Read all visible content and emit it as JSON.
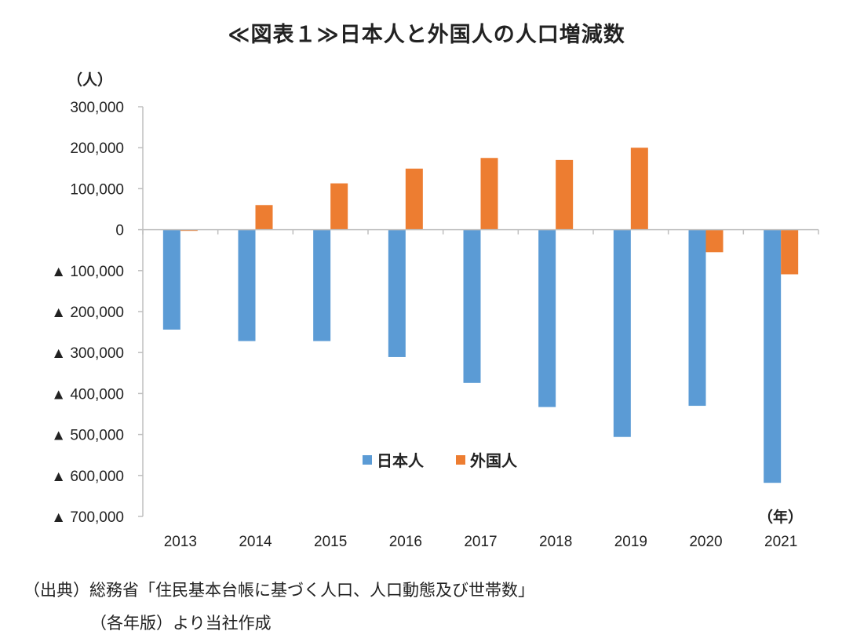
{
  "title": "≪図表１≫日本人と外国人の人口増減数",
  "chart_data": {
    "type": "bar",
    "y_unit_label": "（人）",
    "x_unit_label": "（年）",
    "categories": [
      "2013",
      "2014",
      "2015",
      "2016",
      "2017",
      "2018",
      "2019",
      "2020",
      "2021"
    ],
    "series": [
      {
        "name": "日本人",
        "color": "#5B9BD5",
        "values": [
          -244000,
          -272000,
          -272000,
          -311000,
          -374000,
          -433000,
          -506000,
          -430000,
          -618000
        ]
      },
      {
        "name": "外国人",
        "color": "#ED7D31",
        "values": [
          -3000,
          60000,
          113000,
          149000,
          175000,
          170000,
          200000,
          -55000,
          -109000
        ]
      }
    ],
    "ylim": [
      -700000,
      300000
    ],
    "yticks": [
      300000,
      200000,
      100000,
      0,
      -100000,
      -200000,
      -300000,
      -400000,
      -500000,
      -600000,
      -700000
    ],
    "ytick_labels": [
      "300,000",
      "200,000",
      "100,000",
      "0",
      "▲ 100,000",
      "▲ 200,000",
      "▲ 300,000",
      "▲ 400,000",
      "▲ 500,000",
      "▲ 600,000",
      "▲ 700,000"
    ],
    "legend_position": "center",
    "grid": false
  },
  "source": {
    "line1": "（出典）総務省「住民基本台帳に基づく人口、人口動態及び世帯数」",
    "line2": "（各年版）より当社作成"
  }
}
